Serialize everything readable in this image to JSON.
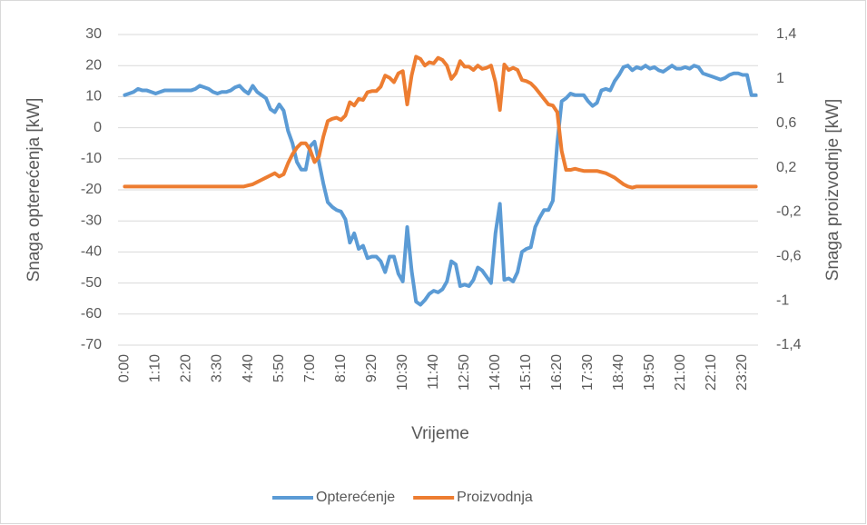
{
  "chart_data": {
    "type": "line",
    "x_label": "Vrijeme",
    "y_label": "Snaga opterećenja [kW]",
    "y2_label": "Snaga proizvodnje [kW]",
    "categories": [
      "0:00",
      null,
      null,
      null,
      null,
      null,
      null,
      "1:10",
      null,
      null,
      null,
      null,
      null,
      null,
      "2:20",
      null,
      null,
      null,
      null,
      null,
      null,
      "3:30",
      null,
      null,
      null,
      null,
      null,
      null,
      "4:40",
      null,
      null,
      null,
      null,
      null,
      null,
      "5:50",
      null,
      null,
      null,
      null,
      null,
      null,
      "7:00",
      null,
      null,
      null,
      null,
      null,
      null,
      "8:10",
      null,
      null,
      null,
      null,
      null,
      null,
      "9:20",
      null,
      null,
      null,
      null,
      null,
      null,
      "10:30",
      null,
      null,
      null,
      null,
      null,
      null,
      "11:40",
      null,
      null,
      null,
      null,
      null,
      null,
      "12:50",
      null,
      null,
      null,
      null,
      null,
      null,
      "14:00",
      null,
      null,
      null,
      null,
      null,
      null,
      "15:10",
      null,
      null,
      null,
      null,
      null,
      null,
      "16:20",
      null,
      null,
      null,
      null,
      null,
      null,
      "17:30",
      null,
      null,
      null,
      null,
      null,
      null,
      "18:40",
      null,
      null,
      null,
      null,
      null,
      null,
      "19:50",
      null,
      null,
      null,
      null,
      null,
      null,
      "21:00",
      null,
      null,
      null,
      null,
      null,
      null,
      "22:10",
      null,
      null,
      null,
      null,
      null,
      null,
      "23:20",
      null,
      null,
      null
    ],
    "series": [
      {
        "name": "Opterećenje",
        "color": "#5b9bd5",
        "values": [
          10.5,
          11,
          11.5,
          12.5,
          12,
          12,
          11.5,
          11,
          11.5,
          12,
          12,
          12,
          12,
          12,
          12,
          12,
          12.5,
          13.5,
          13,
          12.5,
          11.5,
          11,
          11.5,
          11.5,
          12,
          13,
          13.5,
          12,
          11,
          13.5,
          11.5,
          10.5,
          9.5,
          6,
          5,
          7.5,
          5.5,
          -1,
          -5,
          -11,
          -13.5,
          -13.5,
          -6,
          -4.5,
          -11,
          -18,
          -24,
          -25.5,
          -26.5,
          -27,
          -29.5,
          -37,
          -34,
          -39,
          -38,
          -42,
          -41.5,
          -41.5,
          -43,
          -46.5,
          -41.5,
          -41.5,
          -47,
          -49.5,
          -32,
          -46,
          -56,
          -57,
          -55.5,
          -53.5,
          -52.5,
          -53,
          -52,
          -49.5,
          -43,
          -44,
          -51,
          -50.5,
          -51,
          -49,
          -45,
          -46,
          -48,
          -50,
          -34,
          -24.5,
          -49,
          -48.5,
          -49.5,
          -46.5,
          -40,
          -39,
          -38.5,
          -32,
          -29,
          -26.5,
          -26.5,
          -23.5,
          -5,
          8.5,
          9.5,
          11,
          10.5,
          10.5,
          10.5,
          8.5,
          7,
          8,
          12,
          12.5,
          12,
          15,
          17,
          19.5,
          20,
          18.5,
          19.5,
          19,
          20,
          19,
          19.5,
          18.5,
          18,
          19,
          20,
          19,
          19,
          19.5,
          19,
          20,
          19.5,
          17.5,
          17,
          16.5,
          16,
          15.5,
          16,
          17,
          17.5,
          17.5,
          17,
          17,
          10.5,
          10.5
        ]
      },
      {
        "name": "Proizvodnja",
        "color": "#ed7d31",
        "axis": "y2",
        "values": [
          0.03,
          0.03,
          0.03,
          0.03,
          0.03,
          0.03,
          0.03,
          0.03,
          0.03,
          0.03,
          0.03,
          0.03,
          0.03,
          0.03,
          0.03,
          0.03,
          0.03,
          0.03,
          0.03,
          0.03,
          0.03,
          0.03,
          0.03,
          0.03,
          0.03,
          0.03,
          0.03,
          0.03,
          0.04,
          0.05,
          0.07,
          0.09,
          0.11,
          0.13,
          0.15,
          0.12,
          0.14,
          0.24,
          0.32,
          0.38,
          0.42,
          0.42,
          0.36,
          0.25,
          0.3,
          0.48,
          0.62,
          0.64,
          0.65,
          0.63,
          0.67,
          0.79,
          0.76,
          0.82,
          0.81,
          0.88,
          0.89,
          0.89,
          0.93,
          1.03,
          1.01,
          0.97,
          1.05,
          1.07,
          0.77,
          1.03,
          1.2,
          1.18,
          1.12,
          1.15,
          1.14,
          1.19,
          1.17,
          1.12,
          1,
          1.05,
          1.16,
          1.11,
          1.11,
          1.08,
          1.12,
          1.09,
          1.1,
          1.12,
          0.97,
          0.72,
          1.13,
          1.08,
          1.1,
          1.08,
          0.99,
          0.98,
          0.96,
          0.92,
          0.87,
          0.82,
          0.77,
          0.76,
          0.7,
          0.35,
          0.18,
          0.18,
          0.19,
          0.18,
          0.17,
          0.17,
          0.17,
          0.17,
          0.16,
          0.15,
          0.13,
          0.11,
          0.08,
          0.05,
          0.03,
          0.02,
          0.03,
          0.03,
          0.03,
          0.03,
          0.03,
          0.03,
          0.03,
          0.03,
          0.03,
          0.03,
          0.03,
          0.03,
          0.03,
          0.03,
          0.03,
          0.03,
          0.03,
          0.03,
          0.03,
          0.03,
          0.03,
          0.03,
          0.03,
          0.03,
          0.03,
          0.03,
          0.03,
          0.03
        ]
      }
    ],
    "ylim": [
      -70,
      30
    ],
    "yticks": [
      30,
      20,
      10,
      0,
      -10,
      -20,
      -30,
      -40,
      -50,
      -60,
      -70
    ],
    "y2lim": [
      -1.4,
      1.4
    ],
    "y2ticks": [
      {
        "value": 1.4,
        "label": "1,4"
      },
      1,
      {
        "value": 0.6,
        "label": "0,6"
      },
      {
        "value": 0.2,
        "label": "0,2"
      },
      {
        "value": -0.2,
        "label": "-0,2"
      },
      {
        "value": -0.6,
        "label": "-0,6"
      },
      -1,
      {
        "value": -1.4,
        "label": "-1,4"
      }
    ],
    "grid": true,
    "legend": "bottom"
  }
}
